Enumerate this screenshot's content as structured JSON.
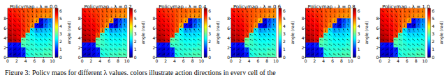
{
  "caption": "Figure 3: Policy maps for different λ values, colors illustrate action directions in every cell of the",
  "chart_data": [
    {
      "type": "heatmap",
      "title": "Policymap - λ = 0.0",
      "x": [
        0.5,
        1.5,
        2.5,
        3.5,
        4.5,
        5.5,
        6.5,
        7.5,
        8.5,
        9.5
      ],
      "y": [
        0.5,
        1.5,
        2.5,
        3.5,
        4.5,
        5.5,
        6.5,
        7.5,
        8.5,
        9.5
      ],
      "xlim": [
        0,
        10
      ],
      "ylim": [
        0,
        10
      ],
      "xticks": [
        0,
        2,
        4,
        6,
        8,
        10
      ],
      "yticks": [
        0,
        2,
        4,
        6,
        8
      ],
      "cells": [
        [
          0.5,
          0.4,
          0.6,
          0.9,
          2.5,
          2.6,
          2.7,
          2.7,
          2.8,
          2.8
        ],
        [
          0.6,
          0.5,
          0.7,
          1.0,
          2.6,
          2.6,
          2.6,
          2.6,
          2.7,
          2.7
        ],
        [
          0.9,
          0.8,
          0.9,
          2.8,
          2.7,
          2.6,
          2.5,
          2.5,
          2.5,
          2.6
        ],
        [
          6.0,
          5.9,
          5.7,
          2.9,
          2.7,
          2.5,
          2.4,
          2.4,
          2.4,
          2.5
        ],
        [
          5.9,
          5.8,
          5.6,
          5.2,
          2.6,
          2.4,
          2.2,
          2.2,
          2.2,
          2.3
        ],
        [
          5.8,
          5.7,
          5.6,
          5.3,
          4.9,
          2.2,
          1.8,
          1.9,
          2.0,
          2.1
        ],
        [
          5.7,
          5.6,
          5.5,
          5.3,
          5.0,
          4.6,
          0.8,
          0.5,
          1.4,
          1.8
        ],
        [
          5.6,
          5.5,
          5.4,
          5.2,
          5.0,
          4.8,
          4.5,
          0.6,
          1.2,
          1.6
        ],
        [
          5.5,
          5.4,
          5.3,
          5.2,
          5.0,
          4.9,
          4.8,
          4.7,
          4.6,
          4.6
        ],
        [
          5.4,
          5.3,
          5.2,
          5.1,
          5.0,
          4.9,
          4.9,
          4.8,
          4.8,
          4.7
        ]
      ],
      "colorbar": {
        "label": "angle (rad)",
        "range": [
          0,
          6.28
        ],
        "ticks": [
          0,
          1,
          2,
          3,
          4,
          5,
          6
        ]
      }
    },
    {
      "type": "heatmap",
      "title": "Policymap - λ = 0.2",
      "x": [
        0.5,
        1.5,
        2.5,
        3.5,
        4.5,
        5.5,
        6.5,
        7.5,
        8.5,
        9.5
      ],
      "y": [
        0.5,
        1.5,
        2.5,
        3.5,
        4.5,
        5.5,
        6.5,
        7.5,
        8.5,
        9.5
      ],
      "xlim": [
        0,
        10
      ],
      "ylim": [
        0,
        10
      ],
      "xticks": [
        0,
        2,
        4,
        6,
        8,
        10
      ],
      "yticks": [
        0,
        2,
        4,
        6,
        8
      ],
      "cells": [
        [
          0.5,
          0.4,
          0.6,
          0.9,
          2.5,
          2.6,
          2.7,
          2.7,
          2.8,
          2.8
        ],
        [
          0.6,
          0.5,
          0.7,
          1.0,
          2.6,
          2.6,
          2.6,
          2.6,
          2.7,
          2.7
        ],
        [
          0.9,
          0.8,
          0.9,
          2.8,
          2.7,
          2.6,
          2.5,
          2.5,
          2.5,
          2.6
        ],
        [
          6.0,
          5.9,
          5.7,
          2.9,
          2.7,
          2.5,
          2.4,
          2.4,
          2.4,
          2.5
        ],
        [
          5.9,
          5.8,
          5.6,
          5.0,
          2.6,
          2.4,
          2.2,
          2.2,
          2.2,
          2.3
        ],
        [
          5.8,
          5.7,
          5.6,
          5.3,
          4.7,
          2.2,
          1.8,
          1.9,
          2.0,
          2.1
        ],
        [
          5.7,
          5.6,
          5.5,
          5.3,
          5.0,
          4.6,
          0.8,
          0.5,
          1.4,
          1.8
        ],
        [
          5.6,
          5.5,
          5.4,
          5.2,
          5.0,
          4.8,
          4.5,
          0.6,
          1.2,
          1.6
        ],
        [
          5.5,
          5.4,
          5.3,
          5.2,
          5.0,
          4.9,
          4.8,
          4.7,
          4.6,
          4.6
        ],
        [
          5.4,
          5.3,
          5.2,
          5.1,
          5.0,
          4.9,
          4.9,
          4.8,
          4.8,
          4.7
        ]
      ],
      "colorbar": {
        "label": "angle (rad)",
        "range": [
          0,
          6.28
        ],
        "ticks": [
          0,
          1,
          2,
          3,
          4,
          5,
          6
        ]
      }
    },
    {
      "type": "heatmap",
      "title": "Policymap - λ = 0.4",
      "x": [
        0.5,
        1.5,
        2.5,
        3.5,
        4.5,
        5.5,
        6.5,
        7.5,
        8.5,
        9.5
      ],
      "y": [
        0.5,
        1.5,
        2.5,
        3.5,
        4.5,
        5.5,
        6.5,
        7.5,
        8.5,
        9.5
      ],
      "xlim": [
        0,
        10
      ],
      "ylim": [
        0,
        10
      ],
      "xticks": [
        0,
        2,
        4,
        6,
        8,
        10
      ],
      "yticks": [
        0,
        2,
        4,
        6,
        8
      ],
      "cells": [
        [
          0.5,
          0.4,
          0.6,
          0.9,
          2.5,
          2.6,
          2.7,
          2.7,
          2.8,
          2.8
        ],
        [
          0.6,
          0.5,
          0.7,
          1.0,
          2.6,
          2.6,
          2.6,
          2.6,
          2.7,
          2.7
        ],
        [
          0.9,
          0.8,
          0.9,
          2.7,
          2.7,
          2.6,
          2.5,
          2.5,
          2.5,
          2.6
        ],
        [
          6.0,
          5.9,
          5.7,
          2.9,
          2.7,
          2.5,
          2.4,
          2.4,
          2.4,
          2.5
        ],
        [
          5.9,
          5.8,
          5.6,
          5.2,
          2.6,
          2.4,
          2.2,
          2.2,
          2.2,
          2.3
        ],
        [
          5.8,
          5.7,
          5.6,
          5.3,
          4.9,
          2.3,
          1.8,
          1.9,
          2.0,
          2.1
        ],
        [
          5.7,
          5.6,
          5.5,
          5.3,
          5.0,
          4.4,
          0.8,
          0.5,
          1.4,
          1.8
        ],
        [
          5.6,
          5.5,
          5.4,
          5.2,
          5.0,
          4.8,
          4.5,
          0.6,
          1.2,
          1.6
        ],
        [
          5.5,
          5.4,
          5.3,
          5.2,
          5.0,
          4.9,
          4.8,
          4.7,
          4.6,
          4.6
        ],
        [
          5.4,
          5.3,
          5.2,
          5.1,
          5.0,
          4.9,
          4.9,
          4.8,
          4.8,
          4.7
        ]
      ],
      "colorbar": {
        "label": "angle (rad)",
        "range": [
          0,
          6.28
        ],
        "ticks": [
          0,
          1,
          2,
          3,
          4,
          5,
          6
        ]
      }
    },
    {
      "type": "heatmap",
      "title": "Policymap - λ = 0.6",
      "x": [
        0.5,
        1.5,
        2.5,
        3.5,
        4.5,
        5.5,
        6.5,
        7.5,
        8.5,
        9.5
      ],
      "y": [
        0.5,
        1.5,
        2.5,
        3.5,
        4.5,
        5.5,
        6.5,
        7.5,
        8.5,
        9.5
      ],
      "xlim": [
        0,
        10
      ],
      "ylim": [
        0,
        10
      ],
      "xticks": [
        0,
        2,
        4,
        6,
        8,
        10
      ],
      "yticks": [
        0,
        2,
        4,
        6,
        8
      ],
      "cells": [
        [
          0.5,
          0.4,
          0.6,
          0.9,
          2.5,
          2.6,
          2.7,
          2.7,
          2.8,
          2.8
        ],
        [
          0.6,
          0.5,
          0.7,
          1.2,
          2.6,
          2.6,
          2.6,
          2.6,
          2.7,
          2.7
        ],
        [
          0.9,
          0.8,
          0.9,
          2.8,
          2.7,
          2.6,
          2.5,
          2.5,
          2.5,
          2.6
        ],
        [
          6.0,
          5.9,
          5.7,
          3.0,
          2.7,
          2.5,
          2.4,
          2.4,
          2.4,
          2.5
        ],
        [
          5.9,
          5.8,
          5.6,
          5.2,
          2.6,
          2.4,
          2.2,
          2.2,
          2.2,
          2.3
        ],
        [
          5.8,
          5.7,
          5.6,
          5.3,
          4.9,
          2.2,
          1.8,
          1.9,
          2.0,
          2.1
        ],
        [
          5.7,
          5.6,
          5.5,
          5.3,
          5.0,
          4.6,
          0.8,
          0.5,
          1.4,
          1.8
        ],
        [
          5.6,
          5.5,
          5.4,
          5.2,
          5.0,
          4.8,
          4.3,
          0.6,
          1.2,
          1.6
        ],
        [
          5.5,
          5.4,
          5.3,
          5.2,
          5.0,
          4.9,
          4.8,
          4.7,
          4.6,
          4.6
        ],
        [
          5.4,
          5.3,
          5.2,
          5.1,
          5.0,
          4.9,
          4.9,
          4.8,
          4.8,
          4.7
        ]
      ],
      "colorbar": {
        "label": "angle (rad)",
        "range": [
          0,
          6.28
        ],
        "ticks": [
          0,
          1,
          2,
          3,
          4,
          5,
          6
        ]
      }
    },
    {
      "type": "heatmap",
      "title": "Policymap - λ = 0.8",
      "x": [
        0.5,
        1.5,
        2.5,
        3.5,
        4.5,
        5.5,
        6.5,
        7.5,
        8.5,
        9.5
      ],
      "y": [
        0.5,
        1.5,
        2.5,
        3.5,
        4.5,
        5.5,
        6.5,
        7.5,
        8.5,
        9.5
      ],
      "xlim": [
        0,
        10
      ],
      "ylim": [
        0,
        10
      ],
      "xticks": [
        0,
        2,
        4,
        6,
        8,
        10
      ],
      "yticks": [
        0,
        2,
        4,
        6,
        8
      ],
      "cells": [
        [
          0.5,
          0.4,
          0.6,
          0.9,
          2.5,
          2.6,
          2.7,
          2.7,
          2.8,
          2.8
        ],
        [
          0.6,
          0.5,
          0.7,
          1.0,
          2.6,
          2.6,
          2.6,
          2.6,
          2.7,
          2.7
        ],
        [
          0.9,
          0.8,
          1.0,
          2.8,
          2.7,
          2.6,
          2.5,
          2.5,
          2.5,
          2.6
        ],
        [
          6.0,
          5.9,
          5.7,
          2.9,
          2.7,
          2.5,
          2.4,
          2.4,
          2.4,
          2.5
        ],
        [
          5.9,
          5.8,
          5.6,
          5.2,
          2.6,
          2.4,
          2.2,
          2.2,
          2.2,
          2.3
        ],
        [
          5.8,
          5.7,
          5.6,
          5.3,
          4.6,
          2.2,
          1.8,
          1.9,
          2.0,
          2.1
        ],
        [
          5.7,
          5.6,
          5.5,
          5.3,
          5.0,
          4.6,
          1.0,
          0.5,
          1.4,
          1.8
        ],
        [
          5.6,
          5.5,
          5.4,
          5.2,
          5.0,
          4.8,
          4.5,
          0.6,
          1.2,
          1.6
        ],
        [
          5.5,
          5.4,
          5.3,
          5.2,
          5.0,
          4.9,
          4.8,
          4.7,
          4.6,
          4.6
        ],
        [
          5.4,
          5.3,
          5.2,
          5.1,
          5.0,
          4.9,
          4.9,
          4.8,
          4.8,
          4.7
        ]
      ],
      "colorbar": {
        "label": "angle (rad)",
        "range": [
          0,
          6.28
        ],
        "ticks": [
          0,
          1,
          2,
          3,
          4,
          5,
          6
        ]
      }
    },
    {
      "type": "heatmap",
      "title": "Policymap - λ = 1.0",
      "x": [
        0.5,
        1.5,
        2.5,
        3.5,
        4.5,
        5.5,
        6.5,
        7.5,
        8.5,
        9.5
      ],
      "y": [
        0.5,
        1.5,
        2.5,
        3.5,
        4.5,
        5.5,
        6.5,
        7.5,
        8.5,
        9.5
      ],
      "xlim": [
        0,
        10
      ],
      "ylim": [
        0,
        10
      ],
      "xticks": [
        0,
        2,
        4,
        6,
        8,
        10
      ],
      "yticks": [
        0,
        2,
        4,
        6,
        8
      ],
      "cells": [
        [
          0.5,
          0.4,
          0.6,
          1.1,
          2.5,
          2.6,
          2.7,
          2.7,
          2.8,
          2.8
        ],
        [
          0.6,
          0.5,
          0.7,
          1.0,
          2.6,
          2.6,
          2.6,
          2.6,
          2.7,
          2.7
        ],
        [
          0.9,
          0.8,
          0.9,
          2.8,
          2.7,
          2.6,
          2.5,
          2.5,
          2.5,
          2.6
        ],
        [
          6.0,
          5.9,
          5.7,
          2.9,
          2.7,
          2.5,
          2.4,
          2.4,
          2.4,
          2.5
        ],
        [
          5.9,
          5.8,
          5.6,
          5.2,
          2.7,
          2.4,
          2.2,
          2.2,
          2.2,
          2.3
        ],
        [
          5.8,
          5.7,
          5.6,
          5.3,
          4.9,
          2.2,
          1.8,
          1.9,
          2.0,
          2.1
        ],
        [
          5.7,
          5.6,
          5.5,
          5.3,
          5.0,
          4.6,
          0.8,
          0.5,
          1.4,
          1.8
        ],
        [
          5.6,
          5.5,
          5.4,
          5.2,
          5.0,
          4.8,
          4.5,
          0.8,
          1.2,
          1.6
        ],
        [
          5.5,
          5.4,
          5.3,
          5.2,
          5.0,
          4.9,
          4.8,
          4.7,
          4.6,
          4.6
        ],
        [
          5.4,
          5.3,
          5.2,
          5.1,
          5.0,
          4.9,
          4.9,
          4.8,
          4.8,
          4.7
        ]
      ],
      "colorbar": {
        "label": "angle (rad)",
        "range": [
          0,
          6.28
        ],
        "ticks": [
          0,
          1,
          2,
          3,
          4,
          5,
          6
        ]
      }
    }
  ]
}
